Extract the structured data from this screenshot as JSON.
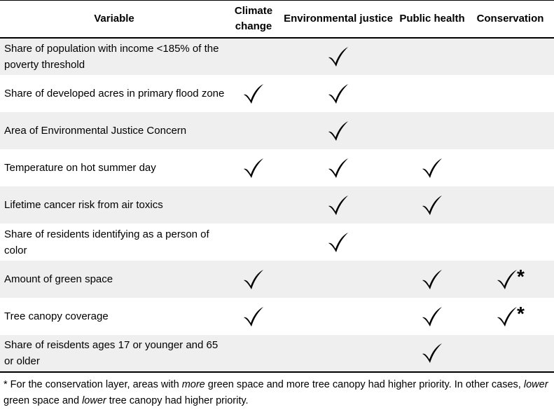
{
  "headers": {
    "variable": "Variable",
    "climate": "Climate change",
    "ej": "Environmental justice",
    "public_health": "Public health",
    "conservation": "Conservation"
  },
  "rows": [
    {
      "variable": "Share of population with income <185% of the poverty threshold",
      "climate": false,
      "ej": true,
      "public_health": false,
      "conservation": false,
      "conservation_star": false
    },
    {
      "variable": "Share of developed acres in primary flood zone",
      "climate": true,
      "ej": true,
      "public_health": false,
      "conservation": false,
      "conservation_star": false
    },
    {
      "variable": "Area of Environmental Justice Concern",
      "climate": false,
      "ej": true,
      "public_health": false,
      "conservation": false,
      "conservation_star": false
    },
    {
      "variable": "Temperature on hot summer day",
      "climate": true,
      "ej": true,
      "public_health": true,
      "conservation": false,
      "conservation_star": false
    },
    {
      "variable": "Lifetime cancer risk from air toxics",
      "climate": false,
      "ej": true,
      "public_health": true,
      "conservation": false,
      "conservation_star": false
    },
    {
      "variable": "Share of residents identifying as a person of color",
      "climate": false,
      "ej": true,
      "public_health": false,
      "conservation": false,
      "conservation_star": false
    },
    {
      "variable": "Amount of green space",
      "climate": true,
      "ej": false,
      "public_health": true,
      "conservation": true,
      "conservation_star": true
    },
    {
      "variable": "Tree canopy coverage",
      "climate": true,
      "ej": false,
      "public_health": true,
      "conservation": true,
      "conservation_star": true
    },
    {
      "variable": "Share of reisdents ages 17 or younger and 65 or older",
      "climate": false,
      "ej": false,
      "public_health": true,
      "conservation": false,
      "conservation_star": false
    }
  ],
  "star_symbol": "*",
  "footnote": {
    "p1": "* For the conservation layer, areas with ",
    "e1": "more",
    "p2": "  green space and more tree canopy had higher priority. In other cases, ",
    "e2": "lower",
    "p3": "  green space and ",
    "e3": "lower",
    "p4": "  tree canopy had higher priority."
  },
  "icons": {
    "check": "checkmark-icon"
  }
}
